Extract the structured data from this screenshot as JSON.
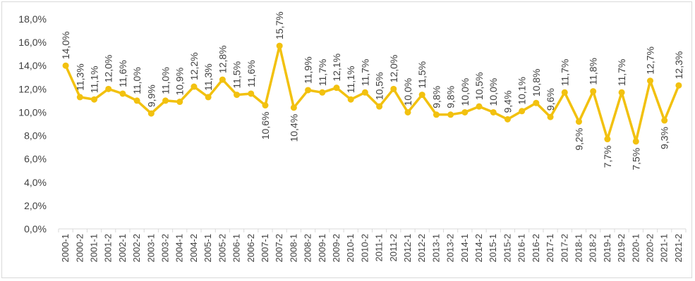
{
  "chart_data": {
    "type": "line",
    "title": "",
    "xlabel": "",
    "ylabel": "",
    "ylim": [
      0,
      18
    ],
    "y_ticks": [
      "0,0%",
      "2,0%",
      "4,0%",
      "6,0%",
      "8,0%",
      "10,0%",
      "12,0%",
      "14,0%",
      "16,0%",
      "18,0%"
    ],
    "grid": false,
    "legend": "none",
    "line_color": "#F2C10F",
    "categories": [
      "2000-1",
      "2000-2",
      "2001-1",
      "2001-2",
      "2002-1",
      "2002-2",
      "2003-1",
      "2003-2",
      "2004-1",
      "2004-2",
      "2005-1",
      "2005-2",
      "2006-1",
      "2006-2",
      "2007-1",
      "2007-2",
      "2008-1",
      "2008-2",
      "2009-1",
      "2009-2",
      "2010-1",
      "2010-2",
      "2011-1",
      "2011-2",
      "2012-1",
      "2012-2",
      "2013-1",
      "2013-2",
      "2014-1",
      "2014-2",
      "2015-1",
      "2015-2",
      "2016-1",
      "2016-2",
      "2017-1",
      "2017-2",
      "2018-1",
      "2018-2",
      "2019-1",
      "2019-2",
      "2020-1",
      "2020-2",
      "2021-1",
      "2021-2"
    ],
    "values": [
      14.0,
      11.3,
      11.1,
      12.0,
      11.6,
      11.0,
      9.9,
      11.0,
      10.9,
      12.2,
      11.3,
      12.8,
      11.5,
      11.6,
      10.6,
      15.7,
      10.4,
      11.9,
      11.7,
      12.1,
      11.1,
      11.7,
      10.5,
      12.0,
      10.0,
      11.5,
      9.8,
      9.8,
      10.0,
      10.5,
      10.0,
      9.4,
      10.1,
      10.8,
      9.6,
      11.7,
      9.2,
      11.8,
      7.7,
      11.7,
      7.5,
      12.7,
      9.3,
      12.3
    ],
    "data_labels": [
      "14,0%",
      "11,3%",
      "11,1%",
      "12,0%",
      "11,6%",
      "11,0%",
      "9,9%",
      "11,0%",
      "10,9%",
      "12,2%",
      "11,3%",
      "12,8%",
      "11,5%",
      "11,6%",
      "10,6%",
      "15,7%",
      "10,4%",
      "11,9%",
      "11,7%",
      "12,1%",
      "11,1%",
      "11,7%",
      "10,5%",
      "12,0%",
      "10,0%",
      "11,5%",
      "9,8%",
      "9,8%",
      "10,0%",
      "10,5%",
      "10,0%",
      "9,4%",
      "10,1%",
      "10,8%",
      "9,6%",
      "11,7%",
      "9,2%",
      "11,8%",
      "7,7%",
      "11,7%",
      "7,5%",
      "12,7%",
      "9,3%",
      "12,3%"
    ],
    "label_below": [
      "2007-1",
      "2008-1",
      "2018-1",
      "2019-1",
      "2020-1",
      "2021-1"
    ]
  }
}
